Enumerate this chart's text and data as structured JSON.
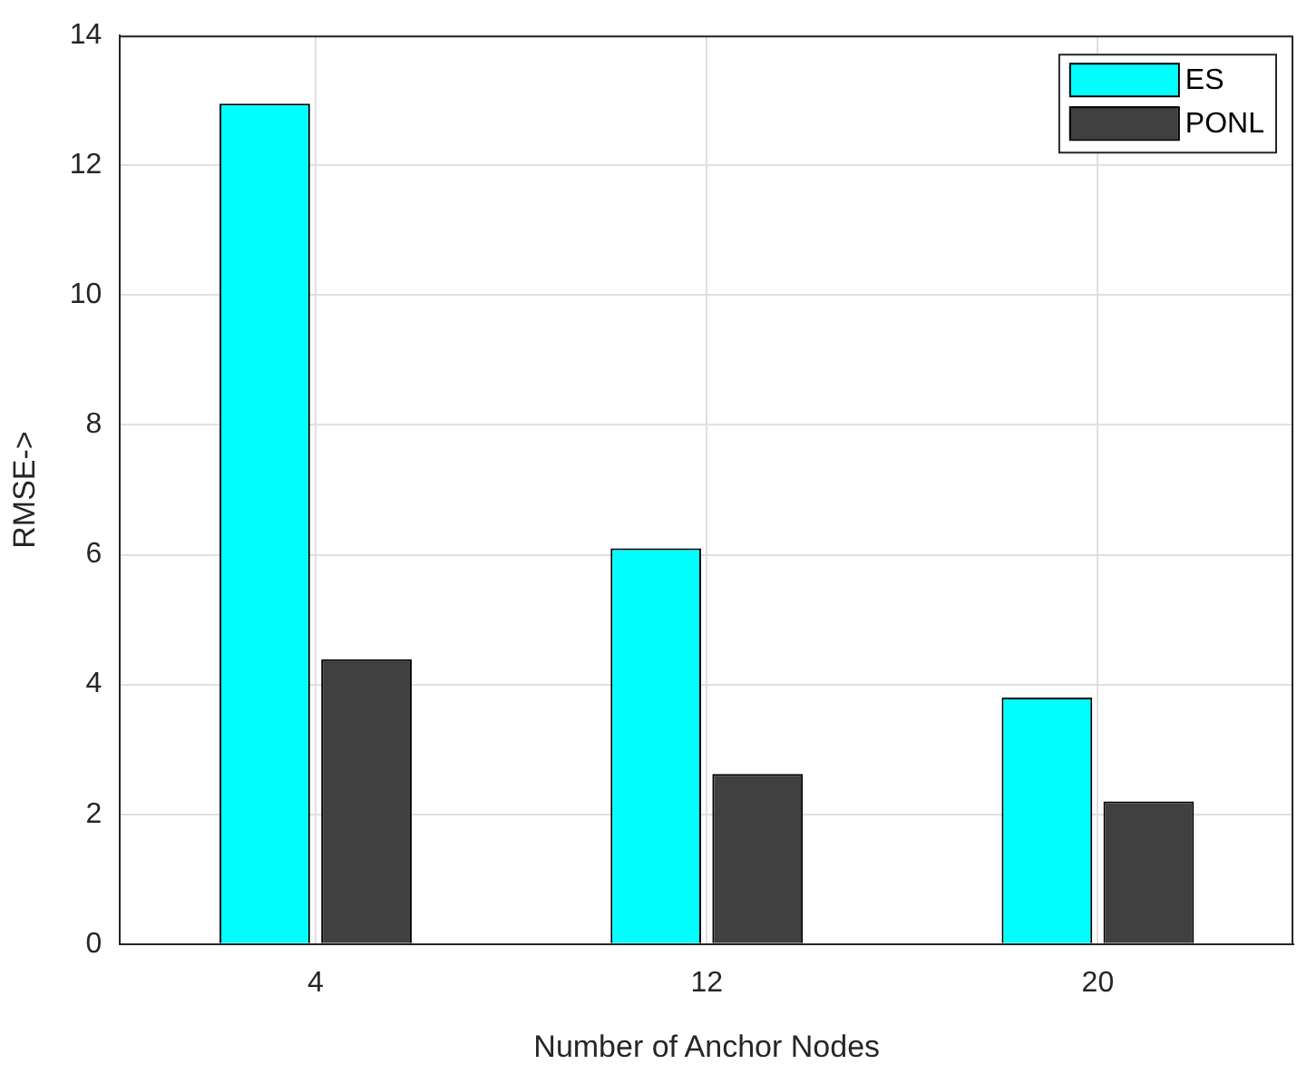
{
  "chart_data": {
    "type": "bar",
    "xlabel": "Number of Anchor Nodes",
    "ylabel": "RMSE->",
    "categories": [
      "4",
      "12",
      "20"
    ],
    "series": [
      {
        "name": "ES",
        "color": "#00ffff",
        "values": [
          12.95,
          6.1,
          3.8
        ]
      },
      {
        "name": "PONL",
        "color": "#404040",
        "values": [
          4.39,
          2.62,
          2.2
        ]
      }
    ],
    "ylim": [
      0,
      14
    ],
    "yticks": [
      0,
      2,
      4,
      6,
      8,
      10,
      12,
      14
    ],
    "grid": true,
    "legend": "top right"
  }
}
